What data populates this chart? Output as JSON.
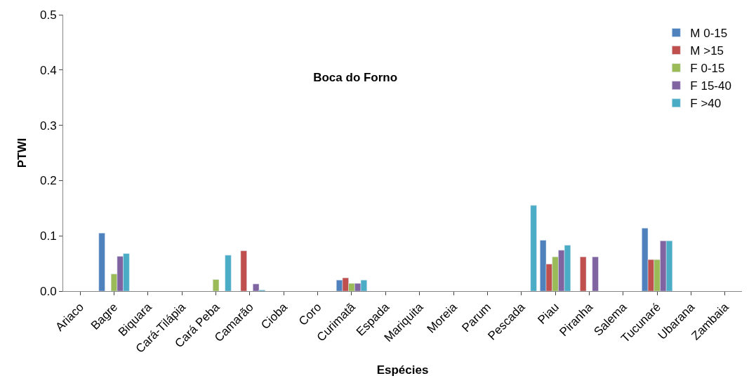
{
  "chart_data": {
    "type": "bar",
    "title": "Boca do Forno",
    "xlabel": "Espécies",
    "ylabel": "PTWI",
    "categories": [
      "Ariaco",
      "Bagre",
      "Biquara",
      "Cará-Tilápia",
      "Cará Peba",
      "Camarão",
      "Cioba",
      "Coro",
      "Curimatã",
      "Espada",
      "Mariquita",
      "Moreia",
      "Parum",
      "Pescada",
      "Piau",
      "Piranha",
      "Salema",
      "Tucunaré",
      "Ubarana",
      "Zambaia"
    ],
    "series": [
      {
        "name": "M 0-15",
        "color": "#4f81bd",
        "values": [
          null,
          0.105,
          null,
          null,
          null,
          null,
          null,
          null,
          0.02,
          null,
          null,
          null,
          null,
          null,
          0.092,
          null,
          null,
          0.114,
          null,
          null
        ]
      },
      {
        "name": "M >15",
        "color": "#c0504d",
        "values": [
          null,
          null,
          null,
          null,
          null,
          0.073,
          null,
          null,
          0.024,
          null,
          null,
          null,
          null,
          null,
          0.049,
          0.062,
          null,
          0.057,
          null,
          null
        ]
      },
      {
        "name": "F 0-15",
        "color": "#9bbb59",
        "values": [
          null,
          0.031,
          null,
          null,
          0.021,
          null,
          null,
          null,
          0.014,
          null,
          null,
          null,
          null,
          null,
          0.062,
          null,
          null,
          0.057,
          null,
          null
        ]
      },
      {
        "name": "F 15-40",
        "color": "#8064a2",
        "values": [
          null,
          0.063,
          null,
          null,
          null,
          0.013,
          null,
          null,
          0.014,
          null,
          null,
          null,
          null,
          null,
          0.074,
          0.062,
          null,
          0.091,
          null,
          null
        ]
      },
      {
        "name": "F >40",
        "color": "#4bacc6",
        "values": [
          null,
          0.068,
          null,
          null,
          0.065,
          0.002,
          null,
          null,
          0.02,
          null,
          null,
          null,
          null,
          0.155,
          0.083,
          null,
          null,
          0.091,
          null,
          null
        ]
      }
    ],
    "ylim": [
      0,
      0.5
    ],
    "yticks": [
      {
        "value": 0,
        "label": "0.0"
      },
      {
        "value": 0.1,
        "label": "0.1"
      },
      {
        "value": 0.2,
        "label": "0.2"
      },
      {
        "value": 0.3,
        "label": "0.3"
      },
      {
        "value": 0.4,
        "label": "0.4"
      },
      {
        "value": 0.5,
        "label": "0.5"
      }
    ],
    "grid": false,
    "legend": "top right"
  }
}
